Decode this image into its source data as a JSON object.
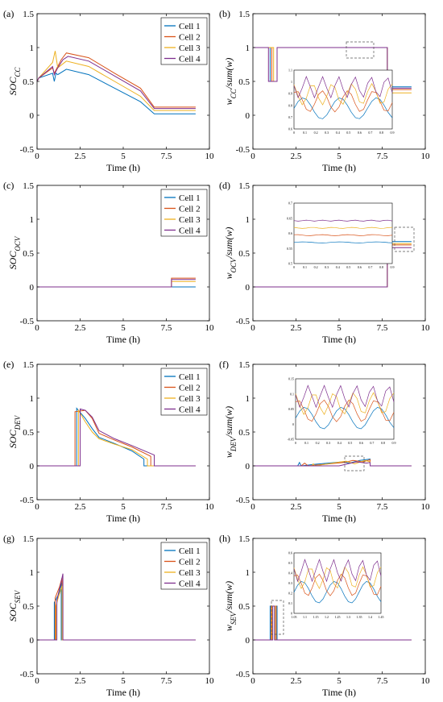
{
  "colors": {
    "cell1": "#0072BD",
    "cell2": "#D95319",
    "cell3": "#EDB120",
    "cell4": "#7E2F8E",
    "zero": "#7E2F8E"
  },
  "legend": [
    "Cell 1",
    "Cell 2",
    "Cell 3",
    "Cell 4"
  ],
  "xlabel": "Time (h)",
  "chart_data": [
    {
      "panel": "(a)",
      "type": "line",
      "ylabel": "SOC",
      "ylabel_sub": "CC",
      "legend": true,
      "xlim": [
        0,
        10
      ],
      "ylim": [
        -0.5,
        1.5
      ],
      "xticks": [
        "0",
        "2.5",
        "5",
        "7.5",
        "10"
      ],
      "yticks": [
        "-0.5",
        "0",
        "0.5",
        "1",
        "1.5"
      ],
      "series": [
        {
          "name": "Cell 1",
          "x": [
            0,
            0.1,
            0.9,
            1.0,
            1.1,
            1.2,
            1.7,
            3.0,
            4.5,
            6.0,
            6.8,
            9.2
          ],
          "y": [
            0.5,
            0.55,
            0.62,
            0.5,
            0.62,
            0.6,
            0.68,
            0.6,
            0.4,
            0.2,
            0.02,
            0.02
          ]
        },
        {
          "name": "Cell 2",
          "x": [
            0,
            0.1,
            0.9,
            1.0,
            1.2,
            1.4,
            1.7,
            3.0,
            4.5,
            6.0,
            6.8,
            9.2
          ],
          "y": [
            0.5,
            0.55,
            0.7,
            0.62,
            0.72,
            0.82,
            0.92,
            0.85,
            0.62,
            0.4,
            0.12,
            0.12
          ]
        },
        {
          "name": "Cell 3",
          "x": [
            0,
            0.1,
            0.9,
            1.05,
            1.2,
            1.7,
            3.0,
            4.5,
            6.0,
            6.8,
            9.2
          ],
          "y": [
            0.5,
            0.55,
            0.78,
            0.95,
            0.7,
            0.8,
            0.72,
            0.5,
            0.28,
            0.07,
            0.07
          ]
        },
        {
          "name": "Cell 4",
          "x": [
            0,
            0.1,
            0.9,
            1.0,
            1.2,
            1.5,
            1.8,
            3.0,
            4.5,
            6.0,
            6.8,
            9.2
          ],
          "y": [
            0.5,
            0.55,
            0.72,
            0.6,
            0.7,
            0.82,
            0.87,
            0.8,
            0.58,
            0.36,
            0.1,
            0.1
          ]
        }
      ]
    },
    {
      "panel": "(b)",
      "type": "line",
      "ylabel": "w",
      "ylabel_sub": "CC",
      "ylabel_tail": "/sum(w)",
      "legend": false,
      "xlim": [
        0,
        10
      ],
      "ylim": [
        -0.5,
        1.5
      ],
      "xticks": [
        "0",
        "2.5",
        "5",
        "7.5",
        "10"
      ],
      "yticks": [
        "-0.5",
        "0",
        "0.5",
        "1",
        "1.5"
      ],
      "series": [
        {
          "name": "Cell 1",
          "x": [
            0,
            1.0,
            1.0,
            1.4,
            1.4,
            7.8,
            7.8,
            9.2
          ],
          "y": [
            1,
            1,
            0.5,
            0.5,
            1,
            1,
            0.42,
            0.42
          ]
        },
        {
          "name": "Cell 2",
          "x": [
            0,
            1.1,
            1.1,
            1.4,
            1.4,
            7.8,
            7.8,
            9.2
          ],
          "y": [
            1,
            1,
            0.5,
            0.5,
            1,
            1,
            0.38,
            0.38
          ]
        },
        {
          "name": "Cell 3",
          "x": [
            0,
            1.2,
            1.2,
            1.4,
            1.4,
            7.8,
            7.8,
            9.2
          ],
          "y": [
            1,
            1,
            0.5,
            0.5,
            1,
            1,
            0.33,
            0.33
          ]
        },
        {
          "name": "Cell 4",
          "x": [
            0,
            0.9,
            0.9,
            1.4,
            1.4,
            7.8,
            7.8,
            9.2
          ],
          "y": [
            1,
            1,
            0.5,
            0.5,
            1,
            1,
            0.4,
            0.4
          ]
        }
      ],
      "inset": {
        "xticks": [
          "0",
          "0.1",
          "0.2",
          "0.3",
          "0.4",
          "0.5",
          "0.6",
          "0.7",
          "0.8",
          "0.9"
        ],
        "yticks": [
          "0.6",
          "0.7",
          "0.8",
          "0.9",
          "1",
          "1.1"
        ],
        "ylim": [
          0.55,
          1.1
        ]
      }
    },
    {
      "panel": "(c)",
      "type": "line",
      "ylabel": "SOC",
      "ylabel_sub": "OCV",
      "legend": true,
      "xlim": [
        0,
        10
      ],
      "ylim": [
        -0.5,
        1.5
      ],
      "xticks": [
        "0",
        "2.5",
        "5",
        "7.5",
        "10"
      ],
      "yticks": [
        "-0.5",
        "0",
        "0.5",
        "1",
        "1.5"
      ],
      "series": [
        {
          "name": "Cell 1",
          "x": [
            0,
            7.8,
            7.8,
            9.2
          ],
          "y": [
            0,
            0,
            0.0,
            0.0
          ]
        },
        {
          "name": "Cell 2",
          "x": [
            0,
            7.8,
            7.8,
            9.2
          ],
          "y": [
            0,
            0,
            0.13,
            0.13
          ]
        },
        {
          "name": "Cell 3",
          "x": [
            0,
            7.8,
            7.8,
            9.2
          ],
          "y": [
            0,
            0,
            0.08,
            0.08
          ]
        },
        {
          "name": "Cell 4",
          "x": [
            0,
            7.8,
            7.8,
            9.2
          ],
          "y": [
            0,
            0,
            0.11,
            0.11
          ]
        }
      ]
    },
    {
      "panel": "(d)",
      "type": "line",
      "ylabel": "w",
      "ylabel_sub": "OCV",
      "ylabel_tail": "/sum(w)",
      "legend": false,
      "xlim": [
        0,
        10
      ],
      "ylim": [
        -0.5,
        1.5
      ],
      "xticks": [
        "0",
        "2.5",
        "5",
        "7.5",
        "10"
      ],
      "yticks": [
        "-0.5",
        "0",
        "0.5",
        "1",
        "1.5"
      ],
      "series": [
        {
          "name": "Cell 1",
          "x": [
            0,
            7.8,
            7.8,
            9.2
          ],
          "y": [
            0,
            0,
            0.67,
            0.67
          ]
        },
        {
          "name": "Cell 2",
          "x": [
            0,
            7.8,
            7.8,
            9.2
          ],
          "y": [
            0,
            0,
            0.62,
            0.62
          ]
        },
        {
          "name": "Cell 3",
          "x": [
            0,
            7.8,
            7.8,
            9.2
          ],
          "y": [
            0,
            0,
            0.64,
            0.64
          ]
        },
        {
          "name": "Cell 4",
          "x": [
            0,
            7.8,
            7.8,
            9.2
          ],
          "y": [
            0,
            0,
            0.58,
            0.58
          ]
        }
      ],
      "inset": {
        "xticks": [
          "0",
          "0.1",
          "0.2",
          "0.3",
          "0.4",
          "0.5",
          "0.6",
          "0.7",
          "0.8",
          "0.9"
        ],
        "yticks": [
          "0.5",
          "0.55",
          "0.6",
          "0.65",
          "0.7"
        ],
        "ylim": [
          0.5,
          0.7
        ]
      }
    },
    {
      "panel": "(e)",
      "type": "line",
      "ylabel": "SOC",
      "ylabel_sub": "DEV",
      "legend": true,
      "xlim": [
        0,
        10
      ],
      "ylim": [
        -0.5,
        1.5
      ],
      "xticks": [
        "0",
        "2.5",
        "5",
        "7.5",
        "10"
      ],
      "yticks": [
        "-0.5",
        "0",
        "0.5",
        "1",
        "1.5"
      ],
      "series": [
        {
          "name": "Cell 1",
          "x": [
            0,
            2.3,
            2.3,
            2.8,
            3.2,
            3.6,
            4.5,
            5.5,
            6.2,
            6.2,
            9.2
          ],
          "y": [
            0,
            0,
            0.85,
            0.7,
            0.55,
            0.42,
            0.33,
            0.22,
            0.1,
            0,
            0
          ]
        },
        {
          "name": "Cell 2",
          "x": [
            0,
            2.2,
            2.2,
            2.8,
            3.2,
            3.6,
            4.5,
            5.5,
            6.6,
            6.6,
            9.2
          ],
          "y": [
            0,
            0,
            0.8,
            0.82,
            0.7,
            0.48,
            0.38,
            0.28,
            0.14,
            0,
            0
          ]
        },
        {
          "name": "Cell 3",
          "x": [
            0,
            2.4,
            2.4,
            2.8,
            3.2,
            3.6,
            4.5,
            5.5,
            6.4,
            6.4,
            9.2
          ],
          "y": [
            0,
            0,
            0.82,
            0.65,
            0.5,
            0.4,
            0.32,
            0.24,
            0.1,
            0,
            0
          ]
        },
        {
          "name": "Cell 4",
          "x": [
            0,
            2.5,
            2.5,
            2.8,
            3.2,
            3.6,
            4.5,
            5.5,
            6.8,
            6.8,
            9.2
          ],
          "y": [
            0,
            0,
            0.84,
            0.82,
            0.72,
            0.52,
            0.4,
            0.3,
            0.16,
            0,
            0
          ]
        }
      ]
    },
    {
      "panel": "(f)",
      "type": "line",
      "ylabel": "w",
      "ylabel_sub": "DEV",
      "ylabel_tail": "/sum(w)",
      "legend": false,
      "xlim": [
        0,
        10
      ],
      "ylim": [
        -0.5,
        1.5
      ],
      "xticks": [
        "0",
        "2.5",
        "5",
        "7.5",
        "10"
      ],
      "yticks": [
        "-0.5",
        "0",
        "0.5",
        "1",
        "1.5"
      ],
      "series": [
        {
          "name": "Cell 1",
          "x": [
            0,
            2.6,
            2.7,
            2.8,
            3.5,
            5.2,
            5.6,
            6.2,
            6.8,
            6.8,
            9.2
          ],
          "y": [
            0,
            0,
            0.05,
            0,
            0.02,
            0.06,
            0.04,
            0.08,
            0.1,
            0,
            0
          ]
        },
        {
          "name": "Cell 2",
          "x": [
            0,
            2.8,
            3.0,
            3.2,
            5.3,
            5.8,
            6.4,
            6.8,
            6.8,
            9.2
          ],
          "y": [
            0,
            0,
            0.04,
            0,
            0.05,
            0.08,
            0.06,
            0.09,
            0,
            0
          ]
        },
        {
          "name": "Cell 3",
          "x": [
            0,
            3.4,
            3.5,
            3.6,
            5.4,
            5.9,
            6.5,
            6.8,
            6.8,
            9.2
          ],
          "y": [
            0,
            0,
            0.03,
            0,
            0.07,
            0.03,
            0.08,
            0.06,
            0,
            0
          ]
        },
        {
          "name": "Cell 4",
          "x": [
            0,
            5.0,
            5.5,
            6.0,
            6.6,
            6.8,
            6.8,
            9.2
          ],
          "y": [
            0,
            0,
            0.03,
            0.06,
            0.04,
            0.05,
            0,
            0
          ]
        }
      ],
      "inset": {
        "xticks": [
          "0",
          "0.1",
          "0.2",
          "0.3",
          "0.4",
          "0.5",
          "0.6",
          "0.7",
          "0.8",
          "0.9"
        ],
        "yticks": [
          "-0.05",
          "0",
          "0.05",
          "0.1",
          "0.15"
        ],
        "ylim": [
          -0.05,
          0.15
        ]
      }
    },
    {
      "panel": "(g)",
      "type": "line",
      "ylabel": "SOC",
      "ylabel_sub": "SEV",
      "legend": true,
      "xlim": [
        0,
        10
      ],
      "ylim": [
        -0.5,
        1.5
      ],
      "xticks": [
        "0",
        "2.5",
        "5",
        "7.5",
        "10"
      ],
      "yticks": [
        "-0.5",
        "0",
        "0.5",
        "1",
        "1.5"
      ],
      "series": [
        {
          "name": "Cell 1",
          "x": [
            0,
            1.0,
            1.0,
            1.2,
            1.3,
            1.4,
            1.4,
            9.2
          ],
          "y": [
            0,
            0,
            0.55,
            0.65,
            0.7,
            0.85,
            0,
            0
          ]
        },
        {
          "name": "Cell 2",
          "x": [
            0,
            1.05,
            1.05,
            1.2,
            1.3,
            1.45,
            1.45,
            9.2
          ],
          "y": [
            0,
            0,
            0.62,
            0.72,
            0.78,
            0.92,
            0,
            0
          ]
        },
        {
          "name": "Cell 3",
          "x": [
            0,
            1.1,
            1.1,
            1.2,
            1.35,
            1.45,
            1.45,
            9.2
          ],
          "y": [
            0,
            0,
            0.5,
            0.6,
            0.72,
            0.8,
            0,
            0
          ]
        },
        {
          "name": "Cell 4",
          "x": [
            0,
            1.15,
            1.15,
            1.25,
            1.35,
            1.5,
            1.5,
            9.2
          ],
          "y": [
            0,
            0,
            0.58,
            0.7,
            0.8,
            0.98,
            0,
            0
          ]
        }
      ]
    },
    {
      "panel": "(h)",
      "type": "line",
      "ylabel": "w",
      "ylabel_sub": "SEV",
      "ylabel_tail": "/sum(w)",
      "legend": false,
      "xlim": [
        0,
        10
      ],
      "ylim": [
        -0.5,
        1.5
      ],
      "xticks": [
        "0",
        "2.5",
        "5",
        "7.5",
        "10"
      ],
      "yticks": [
        "-0.5",
        "0",
        "0.5",
        "1",
        "1.5"
      ],
      "series": [
        {
          "name": "Cell 1",
          "x": [
            0,
            1.0,
            1.0,
            1.4,
            1.4,
            9.2
          ],
          "y": [
            0,
            0,
            0.5,
            0.5,
            0,
            0
          ]
        },
        {
          "name": "Cell 2",
          "x": [
            0,
            1.05,
            1.05,
            1.35,
            1.35,
            9.2
          ],
          "y": [
            0,
            0,
            0.5,
            0.5,
            0,
            0
          ]
        },
        {
          "name": "Cell 3",
          "x": [
            0,
            1.1,
            1.1,
            1.3,
            1.3,
            9.2
          ],
          "y": [
            0,
            0,
            0.5,
            0.5,
            0,
            0
          ]
        },
        {
          "name": "Cell 4",
          "x": [
            0,
            1.15,
            1.15,
            1.25,
            1.25,
            9.2
          ],
          "y": [
            0,
            0,
            0.5,
            0.5,
            0,
            0
          ]
        }
      ],
      "inset": {
        "xticks": [
          "1.05",
          "1.1",
          "1.15",
          "1.2",
          "1.25",
          "1.3",
          "1.35",
          "1.4",
          "1.45"
        ],
        "yticks": [
          "0",
          "0.1",
          "0.2",
          "0.3",
          "0.4",
          "0.5",
          "0.6"
        ],
        "ylim": [
          -0.05,
          0.6
        ]
      }
    }
  ]
}
